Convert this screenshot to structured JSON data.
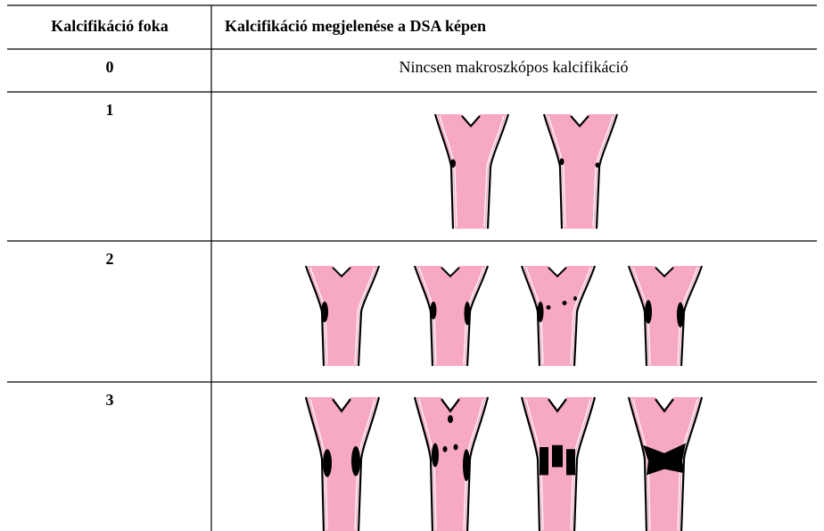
{
  "table": {
    "header": [
      "Kalcifikáció foka",
      "Kalcifikáció megjelenése a DSA képen"
    ],
    "rows": [
      [
        "0",
        "Nincsen makroszkópos kalcifikáció"
      ],
      [
        "1"
      ],
      [
        "2"
      ],
      [
        "3"
      ]
    ]
  }
}
